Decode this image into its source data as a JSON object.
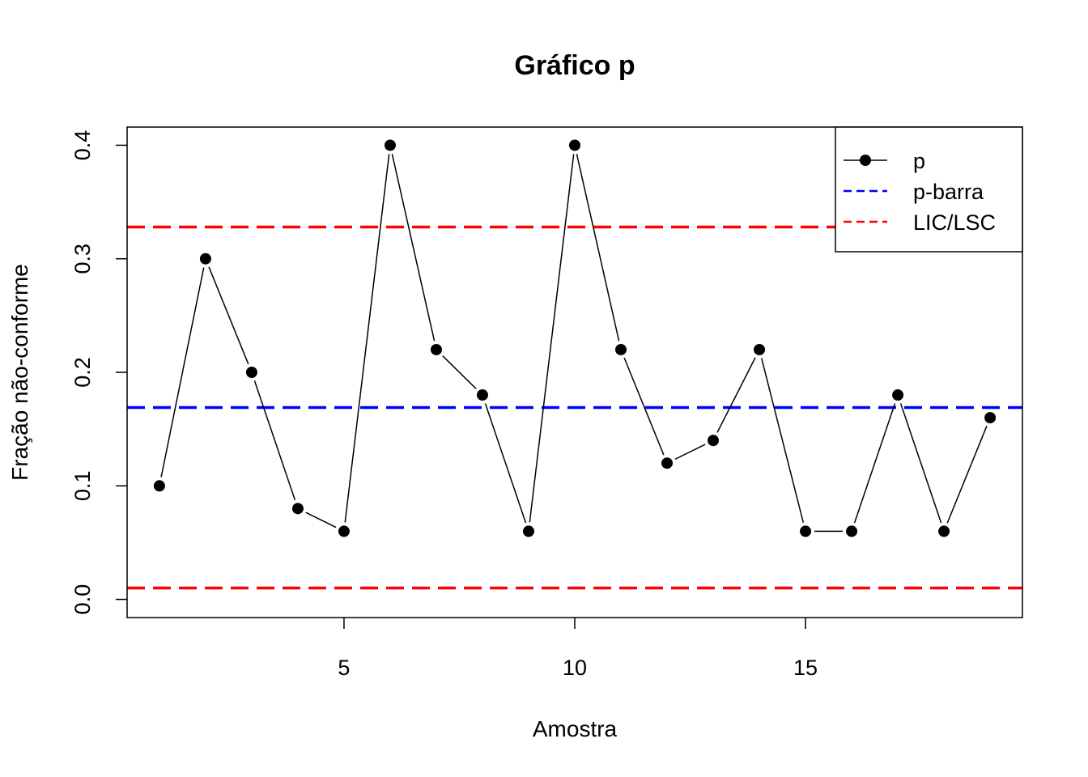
{
  "chart_data": {
    "type": "line",
    "title": "Gráfico p",
    "xlabel": "Amostra",
    "ylabel": "Fração não-conforme",
    "xlim": [
      0.3,
      19.7
    ],
    "ylim": [
      -0.016,
      0.416
    ],
    "x_ticks": [
      5,
      10,
      15
    ],
    "y_ticks": [
      0.0,
      0.1,
      0.2,
      0.3,
      0.4
    ],
    "x_tick_labels": [
      "5",
      "10",
      "15"
    ],
    "y_tick_labels": [
      "0.0",
      "0.1",
      "0.2",
      "0.3",
      "0.4"
    ],
    "grid": false,
    "legend_position": "top-right",
    "series": [
      {
        "name": "p",
        "color": "#000000",
        "style": "line-with-points",
        "x": [
          1,
          2,
          3,
          4,
          5,
          6,
          7,
          8,
          9,
          10,
          11,
          12,
          13,
          14,
          15,
          16,
          17,
          18,
          19
        ],
        "values": [
          0.1,
          0.3,
          0.2,
          0.08,
          0.06,
          0.4,
          0.22,
          0.18,
          0.06,
          0.4,
          0.22,
          0.12,
          0.14,
          0.22,
          0.06,
          0.06,
          0.18,
          0.06,
          0.16
        ]
      }
    ],
    "reference_lines": [
      {
        "name": "p-barra",
        "value": 0.169,
        "color": "#0000FF",
        "dash": "dashed"
      },
      {
        "name": "LIC",
        "value": 0.01,
        "color": "#FF0000",
        "dash": "dashed"
      },
      {
        "name": "LSC",
        "value": 0.328,
        "color": "#FF0000",
        "dash": "dashed"
      }
    ],
    "legend": [
      {
        "label": "p",
        "color": "#000000",
        "style": "line-with-points"
      },
      {
        "label": "p-barra",
        "color": "#0000FF",
        "style": "dashed"
      },
      {
        "label": "LIC/LSC",
        "color": "#FF0000",
        "style": "dashed"
      }
    ]
  }
}
